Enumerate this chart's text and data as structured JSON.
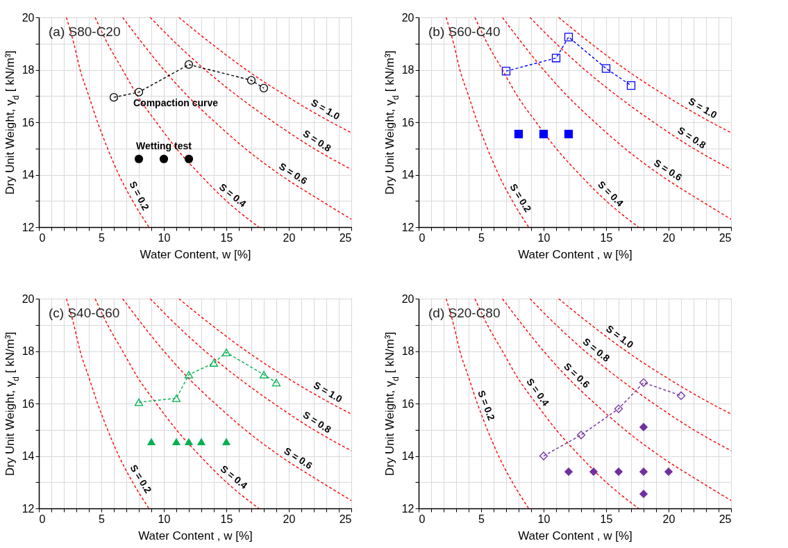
{
  "chart_data": [
    {
      "type": "line",
      "title": "(a) S80-C20",
      "xlabel": "Water Content, w [%]",
      "ylabel": "Dry Unit Weight, γ$_{d}$ [ kN/m³]",
      "grid": true,
      "xlim": [
        0,
        25
      ],
      "ylim": [
        12,
        20
      ],
      "xticks": [
        0,
        {
          "value": 1,
          "label": null
        },
        {
          "value": 2,
          "label": null
        },
        {
          "value": 3,
          "label": null
        },
        {
          "value": 4,
          "label": null
        },
        5,
        {
          "value": 6,
          "label": null
        },
        {
          "value": 7,
          "label": null
        },
        {
          "value": 8,
          "label": null
        },
        {
          "value": 9,
          "label": null
        },
        10,
        {
          "value": 11,
          "label": null
        },
        {
          "value": 12,
          "label": null
        },
        {
          "value": 13,
          "label": null
        },
        {
          "value": 14,
          "label": null
        },
        15,
        {
          "value": 16,
          "label": null
        },
        {
          "value": 17,
          "label": null
        },
        {
          "value": 18,
          "label": null
        },
        {
          "value": 19,
          "label": null
        },
        20,
        {
          "value": 21,
          "label": null
        },
        {
          "value": 22,
          "label": null
        },
        {
          "value": 23,
          "label": null
        },
        {
          "value": 24,
          "label": null
        },
        25
      ],
      "yticks": [
        12,
        {
          "value": 13,
          "label": null
        },
        14,
        {
          "value": 15,
          "label": null
        },
        16,
        {
          "value": 17,
          "label": null
        },
        18,
        {
          "value": 19,
          "label": null
        },
        20
      ],
      "series": [
        {
          "type": "line",
          "color": "#ff0000",
          "marker": "none",
          "line_style": "dashed",
          "x": [
            2.2,
            2.8,
            3.3,
            4.0,
            4.7,
            5.5,
            6.4,
            7.5,
            8.8
          ],
          "values": [
            20,
            19,
            18,
            17,
            16,
            15,
            14,
            13,
            12
          ]
        },
        {
          "type": "line",
          "color": "#ff0000",
          "marker": "none",
          "line_style": "dashed",
          "x": [
            4.5,
            5.5,
            6.7,
            7.9,
            9.4,
            11.0,
            12.9,
            15.0,
            17.6
          ],
          "values": [
            20,
            19,
            18,
            17,
            16,
            15,
            14,
            13,
            12
          ]
        },
        {
          "type": "line",
          "color": "#ff0000",
          "marker": "none",
          "line_style": "dashed",
          "x": [
            6.7,
            8.3,
            10.0,
            11.9,
            14.1,
            16.5,
            19.3,
            22.6,
            25
          ],
          "values": [
            20,
            19,
            18,
            17,
            16,
            15,
            14,
            13,
            12.3
          ]
        },
        {
          "type": "line",
          "color": "#ff0000",
          "marker": "none",
          "line_style": "dashed",
          "x": [
            8.9,
            11.0,
            13.3,
            15.9,
            18.8,
            22.0,
            25
          ],
          "values": [
            20,
            19,
            18,
            17,
            16,
            15,
            14.2
          ]
        },
        {
          "type": "line",
          "color": "#ff0000",
          "marker": "none",
          "line_style": "dashed",
          "x": [
            11.2,
            13.8,
            16.6,
            19.8,
            23.4,
            25
          ],
          "values": [
            20,
            19,
            18,
            17,
            16,
            15.6
          ]
        },
        {
          "type": "line",
          "color": "#000000",
          "marker": "circle",
          "line_style": "dashed",
          "x": [
            6,
            8,
            12,
            17,
            18
          ],
          "values": [
            16.95,
            17.15,
            18.2,
            17.6,
            17.3
          ]
        },
        {
          "type": "scatter",
          "color": "#000000",
          "marker": "circle",
          "x": [
            8,
            10,
            12
          ],
          "values": [
            14.6,
            14.6,
            14.6
          ]
        }
      ],
      "annotations": [
        {
          "text": "S = 0.2",
          "x": 7.45,
          "y": 13.05
        },
        {
          "text": "S = 0.4",
          "x": 15.1,
          "y": 12.97
        },
        {
          "text": "S = 0.6",
          "x": 20.0,
          "y": 13.78
        },
        {
          "text": "S = 0.8",
          "x": 21.9,
          "y": 15.03
        },
        {
          "text": "S = 1.0",
          "x": 22.6,
          "y": 16.22
        },
        {
          "text": "Compaction curve",
          "x": 8,
          "y": 17.15
        },
        {
          "text": "Wetting test",
          "x": 10,
          "y": 14.6
        }
      ]
    },
    {
      "type": "line",
      "title": "(b) S60-C40",
      "xlabel": "Water Content , w [%]",
      "ylabel": "Dry Unit Weight, γ$_{d}$ [ kN/m³]",
      "grid": true,
      "xlim": [
        0,
        25
      ],
      "ylim": [
        12,
        20
      ],
      "xticks": [
        0,
        {
          "value": 1,
          "label": null
        },
        {
          "value": 2,
          "label": null
        },
        {
          "value": 3,
          "label": null
        },
        {
          "value": 4,
          "label": null
        },
        5,
        {
          "value": 6,
          "label": null
        },
        {
          "value": 7,
          "label": null
        },
        {
          "value": 8,
          "label": null
        },
        {
          "value": 9,
          "label": null
        },
        10,
        {
          "value": 11,
          "label": null
        },
        {
          "value": 12,
          "label": null
        },
        {
          "value": 13,
          "label": null
        },
        {
          "value": 14,
          "label": null
        },
        15,
        {
          "value": 16,
          "label": null
        },
        {
          "value": 17,
          "label": null
        },
        {
          "value": 18,
          "label": null
        },
        {
          "value": 19,
          "label": null
        },
        20,
        {
          "value": 21,
          "label": null
        },
        {
          "value": 22,
          "label": null
        },
        {
          "value": 23,
          "label": null
        },
        {
          "value": 24,
          "label": null
        },
        25
      ],
      "yticks": [
        12,
        {
          "value": 13,
          "label": null
        },
        14,
        {
          "value": 15,
          "label": null
        },
        16,
        {
          "value": 17,
          "label": null
        },
        18,
        {
          "value": 19,
          "label": null
        },
        20
      ],
      "series": [
        {
          "type": "line",
          "color": "#ff0000",
          "marker": "none",
          "line_style": "dashed",
          "x": [
            2.2,
            2.8,
            3.3,
            4.0,
            4.7,
            5.5,
            6.4,
            7.5,
            8.8
          ],
          "values": [
            20,
            19,
            18,
            17,
            16,
            15,
            14,
            13,
            12
          ]
        },
        {
          "type": "line",
          "color": "#ff0000",
          "marker": "none",
          "line_style": "dashed",
          "x": [
            4.5,
            5.5,
            6.7,
            7.9,
            9.4,
            11.0,
            12.9,
            15.0,
            17.6
          ],
          "values": [
            20,
            19,
            18,
            17,
            16,
            15,
            14,
            13,
            12
          ]
        },
        {
          "type": "line",
          "color": "#ff0000",
          "marker": "none",
          "line_style": "dashed",
          "x": [
            6.7,
            8.3,
            10.0,
            11.9,
            14.1,
            16.5,
            19.3,
            22.6,
            25
          ],
          "values": [
            20,
            19,
            18,
            17,
            16,
            15,
            14,
            13,
            12.3
          ]
        },
        {
          "type": "line",
          "color": "#ff0000",
          "marker": "none",
          "line_style": "dashed",
          "x": [
            8.9,
            11.0,
            13.3,
            15.9,
            18.8,
            22.0,
            25
          ],
          "values": [
            20,
            19,
            18,
            17,
            16,
            15,
            14.2
          ]
        },
        {
          "type": "line",
          "color": "#ff0000",
          "marker": "none",
          "line_style": "dashed",
          "x": [
            11.2,
            13.8,
            16.6,
            19.8,
            23.4,
            25
          ],
          "values": [
            20,
            19,
            18,
            17,
            16,
            15.6
          ]
        },
        {
          "type": "line",
          "color": "#0000ff",
          "marker": "square",
          "line_style": "dashed",
          "x": [
            7,
            11,
            12,
            15,
            17
          ],
          "values": [
            17.95,
            18.45,
            19.25,
            18.05,
            17.4
          ]
        },
        {
          "type": "scatter",
          "color": "#0000ff",
          "marker": "square",
          "x": [
            8,
            10,
            12
          ],
          "values": [
            15.55,
            15.55,
            15.55
          ]
        }
      ],
      "annotations": [
        {
          "text": "S = 0.2",
          "x": 7.6,
          "y": 12.95
        },
        {
          "text": "S = 0.4",
          "x": 14.9,
          "y": 13.05
        },
        {
          "text": "S = 0.6",
          "x": 19.6,
          "y": 13.91
        },
        {
          "text": "S = 0.8",
          "x": 21.5,
          "y": 15.15
        },
        {
          "text": "S = 1.0",
          "x": 22.4,
          "y": 16.27
        }
      ]
    },
    {
      "type": "line",
      "title": "(c) S40-C60",
      "xlabel": "Water Content , w [%]",
      "ylabel": "Dry Unit Weight, γ$_{d}$ [ kN/m³]",
      "grid": true,
      "xlim": [
        0,
        25
      ],
      "ylim": [
        12,
        20
      ],
      "xticks": [
        0,
        {
          "value": 1,
          "label": null
        },
        {
          "value": 2,
          "label": null
        },
        {
          "value": 3,
          "label": null
        },
        {
          "value": 4,
          "label": null
        },
        5,
        {
          "value": 6,
          "label": null
        },
        {
          "value": 7,
          "label": null
        },
        {
          "value": 8,
          "label": null
        },
        {
          "value": 9,
          "label": null
        },
        10,
        {
          "value": 11,
          "label": null
        },
        {
          "value": 12,
          "label": null
        },
        {
          "value": 13,
          "label": null
        },
        {
          "value": 14,
          "label": null
        },
        15,
        {
          "value": 16,
          "label": null
        },
        {
          "value": 17,
          "label": null
        },
        {
          "value": 18,
          "label": null
        },
        {
          "value": 19,
          "label": null
        },
        20,
        {
          "value": 21,
          "label": null
        },
        {
          "value": 22,
          "label": null
        },
        {
          "value": 23,
          "label": null
        },
        {
          "value": 24,
          "label": null
        },
        25
      ],
      "yticks": [
        12,
        {
          "value": 13,
          "label": null
        },
        14,
        {
          "value": 15,
          "label": null
        },
        16,
        {
          "value": 17,
          "label": null
        },
        18,
        {
          "value": 19,
          "label": null
        },
        20
      ],
      "series": [
        {
          "type": "line",
          "color": "#ff0000",
          "marker": "none",
          "line_style": "dashed",
          "x": [
            2.2,
            2.8,
            3.3,
            4.0,
            4.7,
            5.5,
            6.4,
            7.5,
            8.8
          ],
          "values": [
            20,
            19,
            18,
            17,
            16,
            15,
            14,
            13,
            12
          ]
        },
        {
          "type": "line",
          "color": "#ff0000",
          "marker": "none",
          "line_style": "dashed",
          "x": [
            4.5,
            5.5,
            6.7,
            7.9,
            9.4,
            11.0,
            12.9,
            15.0,
            17.6
          ],
          "values": [
            20,
            19,
            18,
            17,
            16,
            15,
            14,
            13,
            12
          ]
        },
        {
          "type": "line",
          "color": "#ff0000",
          "marker": "none",
          "line_style": "dashed",
          "x": [
            6.7,
            8.3,
            10.0,
            11.9,
            14.1,
            16.5,
            19.3,
            22.6,
            25
          ],
          "values": [
            20,
            19,
            18,
            17,
            16,
            15,
            14,
            13,
            12.3
          ]
        },
        {
          "type": "line",
          "color": "#ff0000",
          "marker": "none",
          "line_style": "dashed",
          "x": [
            8.9,
            11.0,
            13.3,
            15.9,
            18.8,
            22.0,
            25
          ],
          "values": [
            20,
            19,
            18,
            17,
            16,
            15,
            14.2
          ]
        },
        {
          "type": "line",
          "color": "#ff0000",
          "marker": "none",
          "line_style": "dashed",
          "x": [
            11.2,
            13.8,
            16.6,
            19.8,
            23.4,
            25
          ],
          "values": [
            20,
            19,
            18,
            17,
            16,
            15.6
          ]
        },
        {
          "type": "line",
          "color": "#00b050",
          "marker": "triangle",
          "line_style": "dashed",
          "x": [
            8,
            11,
            12,
            14,
            15,
            18,
            19
          ],
          "values": [
            16.05,
            16.2,
            17.1,
            17.55,
            17.95,
            17.1,
            16.8
          ]
        },
        {
          "type": "scatter",
          "color": "#00b050",
          "marker": "triangle",
          "x": [
            9,
            11,
            12,
            13,
            15
          ],
          "values": [
            14.55,
            14.55,
            14.55,
            14.55,
            14.55
          ]
        }
      ],
      "annotations": [
        {
          "text": "S = 0.2",
          "x": 7.6,
          "y": 12.96
        },
        {
          "text": "S = 0.4",
          "x": 15.2,
          "y": 12.95
        },
        {
          "text": "S = 0.6",
          "x": 20.4,
          "y": 13.65
        },
        {
          "text": "S = 0.8",
          "x": 21.9,
          "y": 15.03
        },
        {
          "text": "S = 1.0",
          "x": 22.8,
          "y": 16.17
        }
      ]
    },
    {
      "type": "line",
      "title": "(d) S20-C80",
      "xlabel": "Water Content , w [%]",
      "ylabel": "Dry Unit Weight, γ$_{d}$ [ kN/m³]",
      "grid": true,
      "xlim": [
        0,
        25
      ],
      "ylim": [
        12,
        20
      ],
      "xticks": [
        0,
        {
          "value": 1,
          "label": null
        },
        {
          "value": 2,
          "label": null
        },
        {
          "value": 3,
          "label": null
        },
        {
          "value": 4,
          "label": null
        },
        5,
        {
          "value": 6,
          "label": null
        },
        {
          "value": 7,
          "label": null
        },
        {
          "value": 8,
          "label": null
        },
        {
          "value": 9,
          "label": null
        },
        10,
        {
          "value": 11,
          "label": null
        },
        {
          "value": 12,
          "label": null
        },
        {
          "value": 13,
          "label": null
        },
        {
          "value": 14,
          "label": null
        },
        15,
        {
          "value": 16,
          "label": null
        },
        {
          "value": 17,
          "label": null
        },
        {
          "value": 18,
          "label": null
        },
        {
          "value": 19,
          "label": null
        },
        20,
        {
          "value": 21,
          "label": null
        },
        {
          "value": 22,
          "label": null
        },
        {
          "value": 23,
          "label": null
        },
        {
          "value": 24,
          "label": null
        },
        25
      ],
      "yticks": [
        12,
        {
          "value": 13,
          "label": null
        },
        14,
        {
          "value": 15,
          "label": null
        },
        16,
        {
          "value": 17,
          "label": null
        },
        18,
        {
          "value": 19,
          "label": null
        },
        20
      ],
      "series": [
        {
          "type": "line",
          "color": "#ff0000",
          "marker": "none",
          "line_style": "dashed",
          "x": [
            2.2,
            2.8,
            3.3,
            4.0,
            4.7,
            5.5,
            6.4,
            7.5,
            8.8
          ],
          "values": [
            20,
            19,
            18,
            17,
            16,
            15,
            14,
            13,
            12
          ]
        },
        {
          "type": "line",
          "color": "#ff0000",
          "marker": "none",
          "line_style": "dashed",
          "x": [
            4.5,
            5.5,
            6.7,
            7.9,
            9.4,
            11.0,
            12.9,
            15.0,
            17.6
          ],
          "values": [
            20,
            19,
            18,
            17,
            16,
            15,
            14,
            13,
            12
          ]
        },
        {
          "type": "line",
          "color": "#ff0000",
          "marker": "none",
          "line_style": "dashed",
          "x": [
            6.7,
            8.3,
            10.0,
            11.9,
            14.1,
            16.5,
            19.3,
            22.6,
            25
          ],
          "values": [
            20,
            19,
            18,
            17,
            16,
            15,
            14,
            13,
            12.3
          ]
        },
        {
          "type": "line",
          "color": "#ff0000",
          "marker": "none",
          "line_style": "dashed",
          "x": [
            8.9,
            11.0,
            13.3,
            15.9,
            18.8,
            22.0,
            25
          ],
          "values": [
            20,
            19,
            18,
            17,
            16,
            15,
            14.2
          ]
        },
        {
          "type": "line",
          "color": "#ff0000",
          "marker": "none",
          "line_style": "dashed",
          "x": [
            11.2,
            13.8,
            16.6,
            19.8,
            23.4,
            25
          ],
          "values": [
            20,
            19,
            18,
            17,
            16,
            15.6
          ]
        },
        {
          "type": "line",
          "color": "#7030a0",
          "marker": "diamond",
          "line_style": "dashed",
          "x": [
            10,
            13,
            16,
            18,
            21
          ],
          "values": [
            14.0,
            14.8,
            15.8,
            16.8,
            16.3
          ]
        },
        {
          "type": "scatter",
          "color": "#7030a0",
          "marker": "diamond",
          "x": [
            12,
            14,
            16,
            18,
            20,
            18,
            18
          ],
          "values": [
            13.4,
            13.4,
            13.4,
            13.4,
            13.4,
            15.1,
            12.55
          ]
        }
      ],
      "annotations": [
        {
          "text": "S = 0.2",
          "x": 4.8,
          "y": 15.82
        },
        {
          "text": "S = 0.4",
          "x": 9.0,
          "y": 16.25
        },
        {
          "text": "S = 0.6",
          "x": 12.2,
          "y": 16.85
        },
        {
          "text": "S = 0.8",
          "x": 13.8,
          "y": 17.8
        },
        {
          "text": "S = 1.0",
          "x": 15.7,
          "y": 18.3
        }
      ]
    }
  ]
}
